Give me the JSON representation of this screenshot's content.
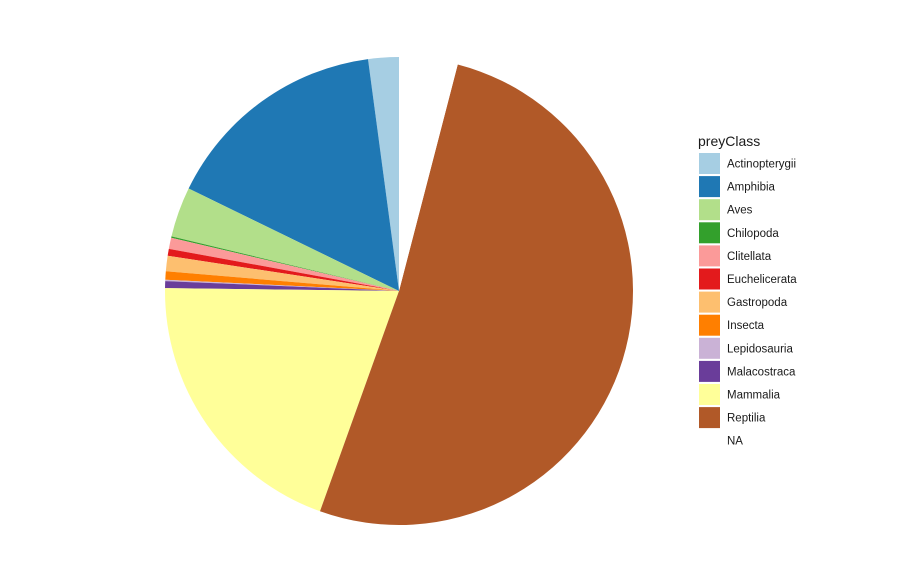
{
  "chart_data": {
    "type": "pie",
    "title": "",
    "legend_title": "preyClass",
    "legend_position": "right",
    "categories": [
      "Actinopterygii",
      "Amphibia",
      "Aves",
      "Chilopoda",
      "Clitellata",
      "Euchelicerata",
      "Gastropoda",
      "Insecta",
      "Lepidosauria",
      "Malacostraca",
      "Mammalia",
      "Reptilia",
      "NA"
    ],
    "values": [
      2.2,
      16.3,
      3.6,
      0.1,
      0.8,
      0.5,
      1.1,
      0.6,
      0.1,
      0.5,
      20.5,
      53.5,
      4.2
    ],
    "colors": [
      "#A6CEE3",
      "#1F78B4",
      "#B2DF8A",
      "#33A02C",
      "#FB9A99",
      "#E31A1C",
      "#FDBF6F",
      "#FF7F00",
      "#CAB2D6",
      "#6A3D9A",
      "#FFFF99",
      "#B15928",
      "#FFFFFF"
    ]
  }
}
